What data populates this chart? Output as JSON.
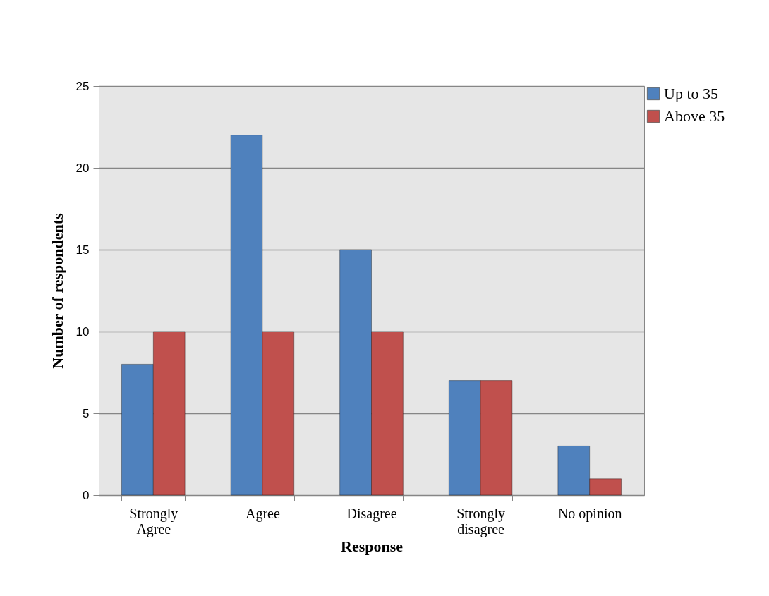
{
  "chart_data": {
    "type": "bar",
    "xlabel": "Response",
    "ylabel": "Number of respondents",
    "categories": [
      "Strongly Agree",
      "Agree",
      "Disagree",
      "Strongly disagree",
      "No opinion"
    ],
    "series": [
      {
        "name": "Up to 35",
        "color": "#4f81bd",
        "values": [
          8,
          22,
          15,
          7,
          3
        ]
      },
      {
        "name": "Above 35",
        "color": "#c0504d",
        "values": [
          10,
          10,
          10,
          7,
          1
        ]
      }
    ],
    "ylim": [
      0,
      25
    ],
    "yticks": [
      0,
      5,
      10,
      15,
      20,
      25
    ],
    "grid": "y",
    "legend": "right"
  }
}
